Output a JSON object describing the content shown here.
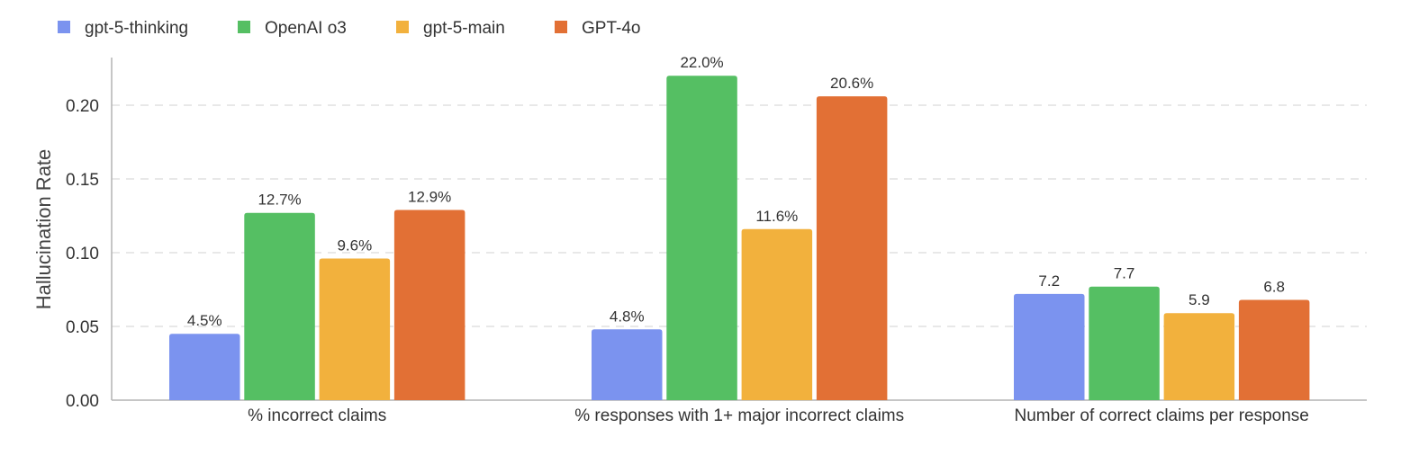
{
  "chart_data": {
    "type": "bar",
    "title": "",
    "xlabel": "",
    "ylabel": "Hallucination Rate",
    "ylim": [
      0,
      0.232
    ],
    "yticks": [
      "0.00",
      "0.05",
      "0.10",
      "0.15",
      "0.20"
    ],
    "ytick_values": [
      0,
      0.05,
      0.1,
      0.15,
      0.2
    ],
    "grid": "horizontal dashed",
    "legend_position": "top-left",
    "categories": [
      "% incorrect claims",
      "% responses with 1+ major incorrect claims",
      "Number of correct claims per response"
    ],
    "series": [
      {
        "name": "gpt-5-thinking",
        "color": "#7b93ef",
        "values": [
          0.045,
          0.048,
          0.072
        ],
        "labels": [
          "4.5%",
          "4.8%",
          "7.2"
        ]
      },
      {
        "name": "OpenAI o3",
        "color": "#55bf63",
        "values": [
          0.127,
          0.22,
          0.077
        ],
        "labels": [
          "12.7%",
          "22.0%",
          "7.7"
        ]
      },
      {
        "name": "gpt-5-main",
        "color": "#f2b13d",
        "values": [
          0.096,
          0.116,
          0.059
        ],
        "labels": [
          "9.6%",
          "11.6%",
          "5.9"
        ]
      },
      {
        "name": "GPT-4o",
        "color": "#e27035",
        "values": [
          0.129,
          0.206,
          0.068
        ],
        "labels": [
          "12.9%",
          "20.6%",
          "6.8"
        ]
      }
    ]
  }
}
